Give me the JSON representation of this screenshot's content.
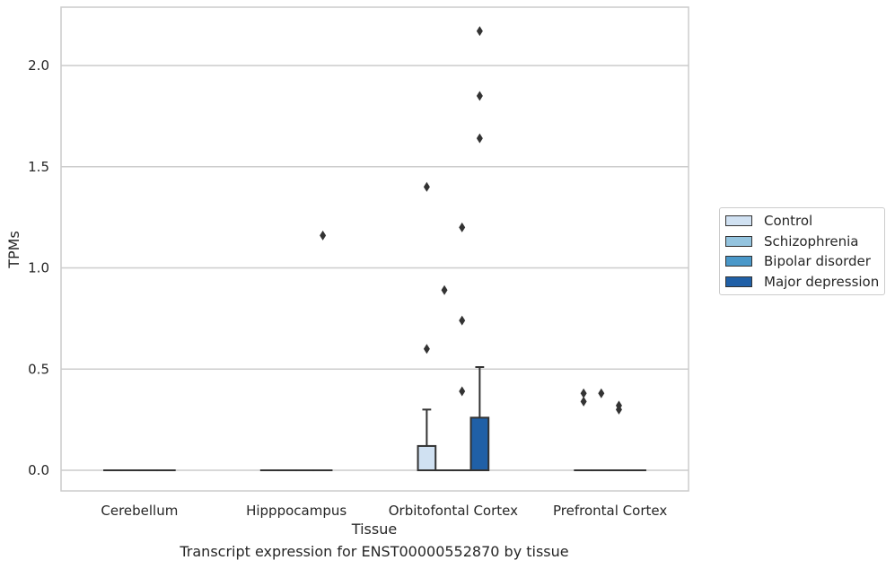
{
  "caption": "Transcript expression for ENST00000552870 by tissue",
  "colors": {
    "Control": "#d0e1f2",
    "Schizophrenia": "#94c4df",
    "Bipolar disorder": "#4a98c9",
    "Major depression": "#2060a7",
    "outline": "#333333",
    "grid": "#cccccc"
  },
  "chart_data": {
    "type": "box",
    "xlabel": "Tissue",
    "ylabel": "TPMs",
    "ylim": [
      -0.1,
      2.28
    ],
    "yticks": [
      0.0,
      0.5,
      1.0,
      1.5,
      2.0
    ],
    "ytick_labels": [
      "0.0",
      "0.5",
      "1.0",
      "1.5",
      "2.0"
    ],
    "grid": "horizontal",
    "legend_position": "right-outside",
    "categories": [
      "Cerebellum",
      "Hipppocampus",
      "Orbitofontal Cortex",
      "Prefrontal Cortex"
    ],
    "series": [
      {
        "name": "Control",
        "boxes": [
          {
            "q1": 0,
            "median": 0,
            "q3": 0,
            "whislo": 0,
            "whishi": 0,
            "fliers": []
          },
          {
            "q1": 0,
            "median": 0,
            "q3": 0,
            "whislo": 0,
            "whishi": 0,
            "fliers": []
          },
          {
            "q1": 0,
            "median": 0,
            "q3": 0.12,
            "whislo": 0,
            "whishi": 0.3,
            "fliers": [
              0.6,
              1.4
            ]
          },
          {
            "q1": 0,
            "median": 0,
            "q3": 0,
            "whislo": 0,
            "whishi": 0,
            "fliers": [
              0.34,
              0.38
            ]
          }
        ]
      },
      {
        "name": "Schizophrenia",
        "boxes": [
          {
            "q1": 0,
            "median": 0,
            "q3": 0,
            "whislo": 0,
            "whishi": 0,
            "fliers": []
          },
          {
            "q1": 0,
            "median": 0,
            "q3": 0,
            "whislo": 0,
            "whishi": 0,
            "fliers": []
          },
          {
            "q1": 0,
            "median": 0,
            "q3": 0,
            "whislo": 0,
            "whishi": 0,
            "fliers": [
              0.89
            ]
          },
          {
            "q1": 0,
            "median": 0,
            "q3": 0,
            "whislo": 0,
            "whishi": 0,
            "fliers": [
              0.38
            ]
          }
        ]
      },
      {
        "name": "Bipolar disorder",
        "boxes": [
          {
            "q1": 0,
            "median": 0,
            "q3": 0,
            "whislo": 0,
            "whishi": 0,
            "fliers": []
          },
          {
            "q1": 0,
            "median": 0,
            "q3": 0,
            "whislo": 0,
            "whishi": 0,
            "fliers": []
          },
          {
            "q1": 0,
            "median": 0,
            "q3": 0,
            "whislo": 0,
            "whishi": 0,
            "fliers": [
              0.39,
              0.74,
              1.2
            ]
          },
          {
            "q1": 0,
            "median": 0,
            "q3": 0,
            "whislo": 0,
            "whishi": 0,
            "fliers": [
              0.3,
              0.32
            ]
          }
        ]
      },
      {
        "name": "Major depression",
        "boxes": [
          {
            "q1": 0,
            "median": 0,
            "q3": 0,
            "whislo": 0,
            "whishi": 0,
            "fliers": []
          },
          {
            "q1": 0,
            "median": 0,
            "q3": 0,
            "whislo": 0,
            "whishi": 0,
            "fliers": [
              1.16
            ]
          },
          {
            "q1": 0,
            "median": 0,
            "q3": 0.26,
            "whislo": 0,
            "whishi": 0.51,
            "fliers": [
              1.64,
              1.85,
              2.17
            ]
          },
          {
            "q1": 0,
            "median": 0,
            "q3": 0,
            "whislo": 0,
            "whishi": 0,
            "fliers": []
          }
        ]
      }
    ]
  }
}
